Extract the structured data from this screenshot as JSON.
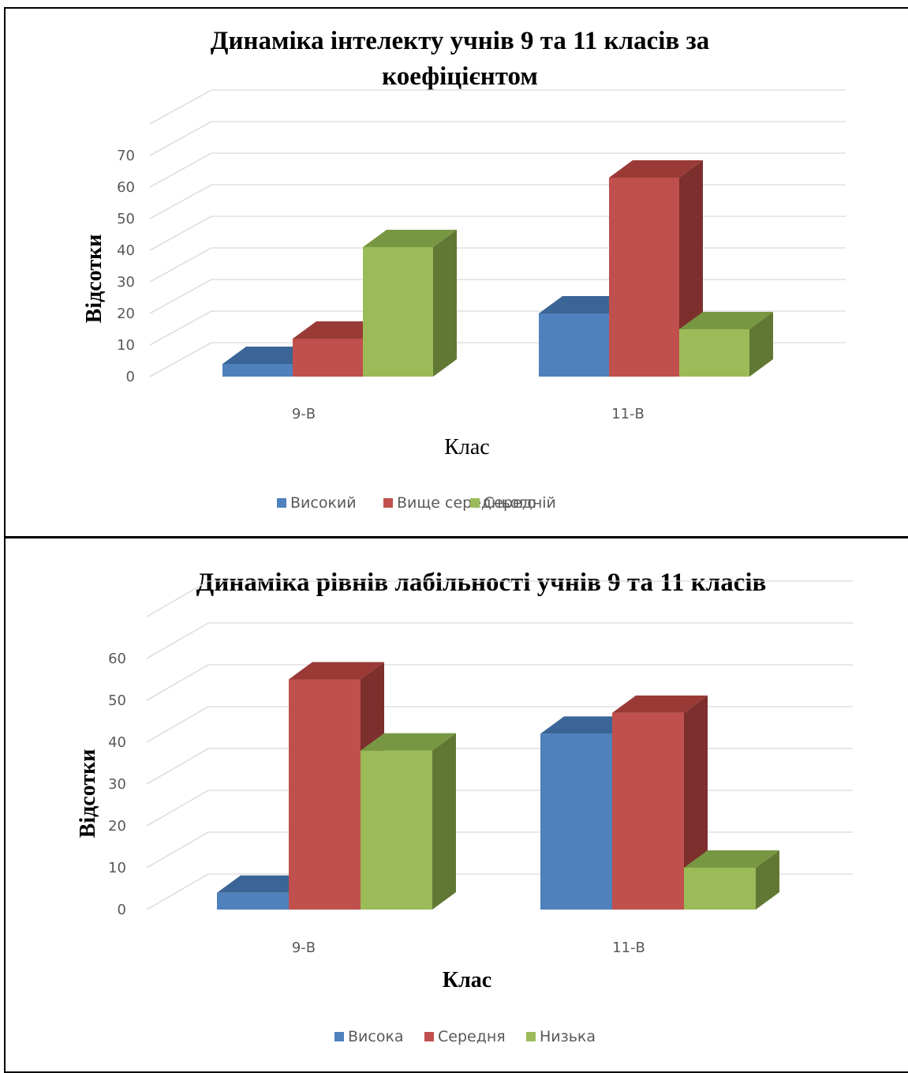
{
  "colors": {
    "blue": {
      "front": "#4f81bd",
      "top": "#3b6596",
      "side": "#345a88"
    },
    "red": {
      "front": "#c0504d",
      "top": "#9a3a37",
      "side": "#7d2f2d"
    },
    "green": {
      "front": "#9bbb59",
      "top": "#789742",
      "side": "#617834"
    },
    "grid": "#d9d9d9",
    "text": "#595959"
  },
  "chart_data": [
    {
      "type": "bar",
      "title": [
        "Динаміка інтелекту учнів 9 та 11 класів за",
        "коефіцієнтом"
      ],
      "xlabel": "Клас",
      "ylabel": "Відсотки",
      "categories": [
        "9-В",
        "11-В"
      ],
      "ylim": [
        0,
        80
      ],
      "yticks": [
        0,
        10,
        20,
        30,
        40,
        50,
        60,
        70
      ],
      "grid": true,
      "legend_position": "bottom",
      "series": [
        {
          "name": "Високий",
          "color": "blue",
          "values": [
            4,
            20
          ]
        },
        {
          "name": "Вище середнього",
          "color": "red",
          "values": [
            12,
            63
          ]
        },
        {
          "name": "Середній",
          "color": "green",
          "values": [
            41,
            15
          ]
        }
      ]
    },
    {
      "type": "bar",
      "title": [
        "Динаміка рівнів лабільності учнів 9 та 11 класів"
      ],
      "xlabel": "Клас",
      "ylabel": "Відсотки",
      "categories": [
        "9-В",
        "11-В"
      ],
      "ylim": [
        0,
        70
      ],
      "yticks": [
        0,
        10,
        20,
        30,
        40,
        50,
        60
      ],
      "grid": true,
      "legend_position": "bottom",
      "series": [
        {
          "name": "Висока",
          "color": "blue",
          "values": [
            4,
            42
          ]
        },
        {
          "name": "Середня",
          "color": "red",
          "values": [
            55,
            47
          ]
        },
        {
          "name": "Низька",
          "color": "green",
          "values": [
            38,
            10
          ]
        }
      ]
    }
  ]
}
